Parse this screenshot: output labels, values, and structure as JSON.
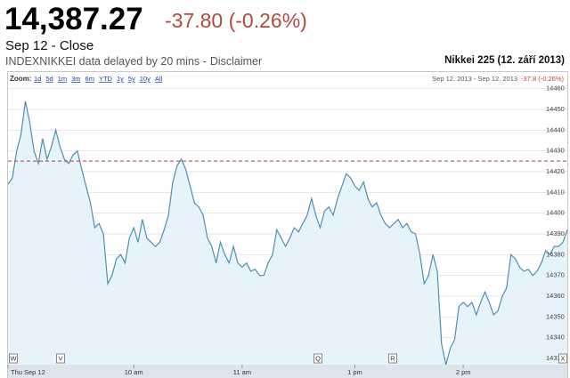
{
  "header": {
    "price": "14,387.27",
    "change": "-37.80 (-0.26%)",
    "status": "Sep 12 - Close",
    "source": "INDEXNIKKEI data delayed by 20 mins -",
    "disclaimer": "Disclaimer",
    "index_name": "Nikkei 225 (12. září 2013)"
  },
  "toolbar": {
    "zoom_label": "Zoom:",
    "zoom_options": [
      "1d",
      "5d",
      "1m",
      "3m",
      "6m",
      "YTD",
      "1y",
      "5y",
      "10y",
      "All"
    ],
    "range": "Sep 12, 2013 - Sep 12, 2013",
    "change": "-37.8 (-0.26%)"
  },
  "chart_data": {
    "type": "area",
    "color": "#4f8fae",
    "fill": "#e6f3fa",
    "values": [
      14414,
      14417,
      14430,
      14438,
      14454,
      14444,
      14430,
      14424,
      14436,
      14426,
      14432,
      14440,
      14432,
      14426,
      14424,
      14428,
      14430,
      14421,
      14413,
      14405,
      14393,
      14395,
      14390,
      14366,
      14370,
      14378,
      14380,
      14376,
      14388,
      14393,
      14386,
      14397,
      14388,
      14386,
      14384,
      14386,
      14392,
      14399,
      14415,
      14423,
      14426,
      14421,
      14413,
      14405,
      14403,
      14399,
      14388,
      14384,
      14376,
      14386,
      14380,
      14376,
      14384,
      14376,
      14374,
      14376,
      14372,
      14373,
      14370,
      14370,
      14376,
      14380,
      14392,
      14388,
      14384,
      14388,
      14393,
      14391,
      14395,
      14399,
      14407,
      14399,
      14393,
      14401,
      14403,
      14399,
      14407,
      14413,
      14419,
      14417,
      14413,
      14411,
      14415,
      14407,
      14403,
      14405,
      14399,
      14395,
      14393,
      14395,
      14397,
      14393,
      14395,
      14391,
      14390,
      14380,
      14366,
      14370,
      14380,
      14372,
      14337,
      14327,
      14335,
      14339,
      14355,
      14357,
      14355,
      14357,
      14351,
      14357,
      14362,
      14357,
      14351,
      14353,
      14360,
      14364,
      14380,
      14378,
      14374,
      14372,
      14373,
      14370,
      14372,
      14376,
      14382,
      14380,
      14384,
      14384,
      14386,
      14392
    ],
    "reference_line": 14425.07,
    "xlim": [
      0,
      129
    ],
    "xticks": [
      {
        "value": 0,
        "label": "Thu Sep 12"
      },
      {
        "value": 29,
        "label": "10 am"
      },
      {
        "value": 54,
        "label": "11 am"
      },
      {
        "value": 80,
        "label": "1 pm"
      },
      {
        "value": 105,
        "label": "2 pm"
      }
    ],
    "ylim": [
      14327,
      14462
    ],
    "yticks": [
      14330,
      14340,
      14350,
      14360,
      14370,
      14380,
      14390,
      14400,
      14410,
      14420,
      14430,
      14440,
      14450,
      14460
    ],
    "flags": [
      "W",
      "V",
      "Q",
      "R",
      "X"
    ],
    "grid": true
  }
}
